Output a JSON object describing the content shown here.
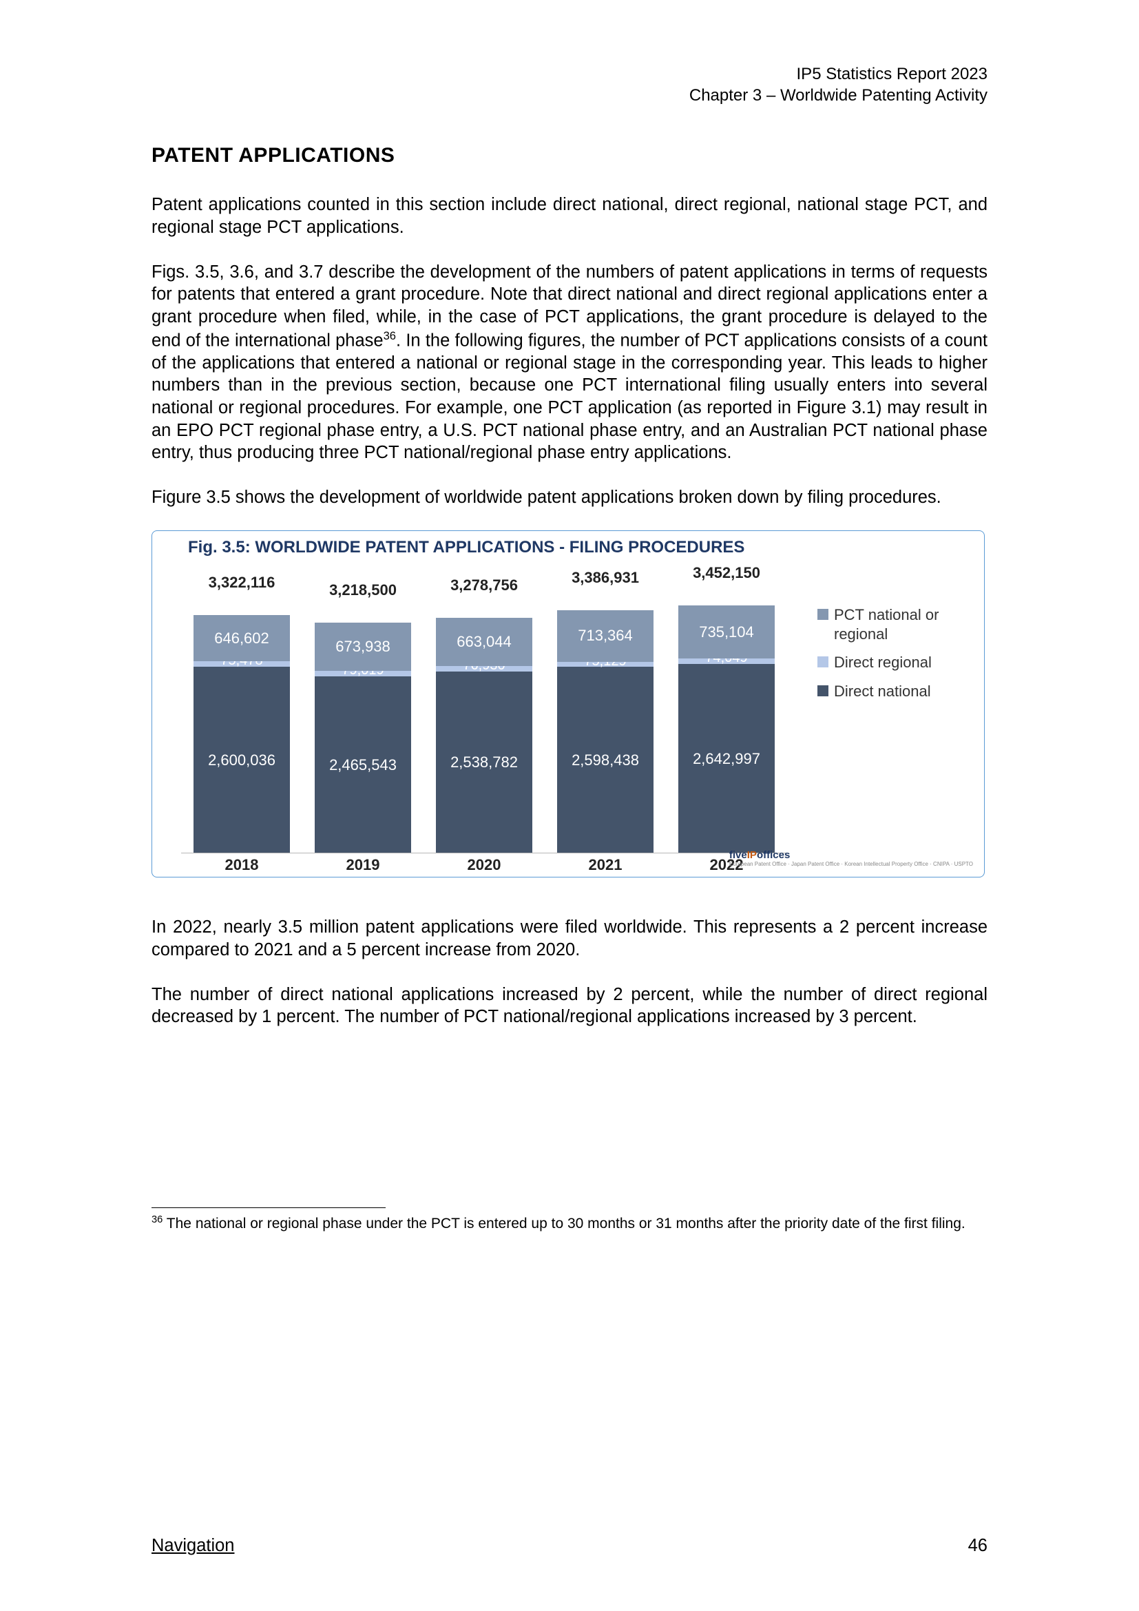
{
  "header": {
    "line1": "IP5 Statistics Report 2023",
    "line2": "Chapter 3 – Worldwide Patenting Activity"
  },
  "sectionTitle": "PATENT APPLICATIONS",
  "paragraphs": {
    "p1": "Patent applications counted in this section include direct national, direct regional, national stage PCT, and regional stage PCT applications.",
    "p2a": "Figs. 3.5, 3.6, and 3.7 describe the development of the numbers of patent applications in terms of requests for patents that entered a grant procedure. Note that direct national and direct regional applications enter a grant procedure when filed, while, in the case of PCT applications, the grant procedure is delayed to the end of the international phase",
    "p2b": ". In the following figures, the number of PCT applications consists of a count of the applications that entered a national or regional stage in the corresponding year. This leads to higher numbers than in the previous section, because one PCT international filing usually enters into several national or regional procedures. For example, one PCT application (as reported in Figure 3.1) may result in an EPO PCT regional phase entry, a U.S. PCT national phase entry, and an Australian PCT national phase entry, thus producing three PCT national/regional phase entry applications.",
    "p3": "Figure 3.5 shows the development of worldwide patent applications broken down by filing procedures.",
    "p4": "In 2022, nearly 3.5 million patent applications were filed worldwide. This represents a 2 percent increase compared to 2021 and a 5 percent increase from 2020.",
    "p5": "The number of direct national applications increased by 2 percent, while the number of direct regional decreased by 1 percent. The number of PCT national/regional applications increased by 3 percent."
  },
  "chart": {
    "title": "Fig. 3.5: WORLDWIDE PATENT APPLICATIONS - FILING PROCEDURES",
    "type": "stacked-bar",
    "categories": [
      "2018",
      "2019",
      "2020",
      "2021",
      "2022"
    ],
    "totals": [
      "3,322,116",
      "3,218,500",
      "3,278,756",
      "3,386,931",
      "3,452,150"
    ],
    "series": [
      {
        "name": "Direct national",
        "color": "#44546a",
        "values": [
          "2,600,036",
          "2,465,543",
          "2,538,782",
          "2,598,438",
          "2,642,997"
        ],
        "raw": [
          2600036,
          2465543,
          2538782,
          2598438,
          2642997
        ]
      },
      {
        "name": "Direct regional",
        "color": "#b4c7e7",
        "values": [
          "75,478",
          "79,019",
          "76,930",
          "75,129",
          "74,049"
        ],
        "raw": [
          75478,
          79019,
          76930,
          75129,
          74049
        ]
      },
      {
        "name": "PCT national or regional",
        "color": "#8497b0",
        "values": [
          "646,602",
          "673,938",
          "663,044",
          "713,364",
          "735,104"
        ],
        "raw": [
          646602,
          673938,
          663044,
          713364,
          735104
        ]
      }
    ],
    "totals_raw": [
      3322116,
      3218500,
      3278756,
      3386931,
      3452150
    ],
    "legendOrder": [
      "PCT national or regional",
      "Direct regional",
      "Direct national"
    ],
    "colors": {
      "title": "#1f3864",
      "border": "#5b9bd5",
      "axis": "#b7b7b7"
    },
    "brand": {
      "pre": "five",
      "mid": "IP",
      "post": "offices"
    },
    "plot": {
      "areaLeft": 42,
      "areaWidth": 880,
      "areaTop": 54,
      "areaBottom": 34,
      "barWidth": 140,
      "groupPitch": 176,
      "maxTotal": 3452150
    }
  },
  "footnote": {
    "mark": "36",
    "text": " The national or regional phase under the PCT is entered up to 30 months or 31 months after the priority date of the first filing."
  },
  "footer": {
    "nav": "Navigation",
    "page": "46"
  }
}
